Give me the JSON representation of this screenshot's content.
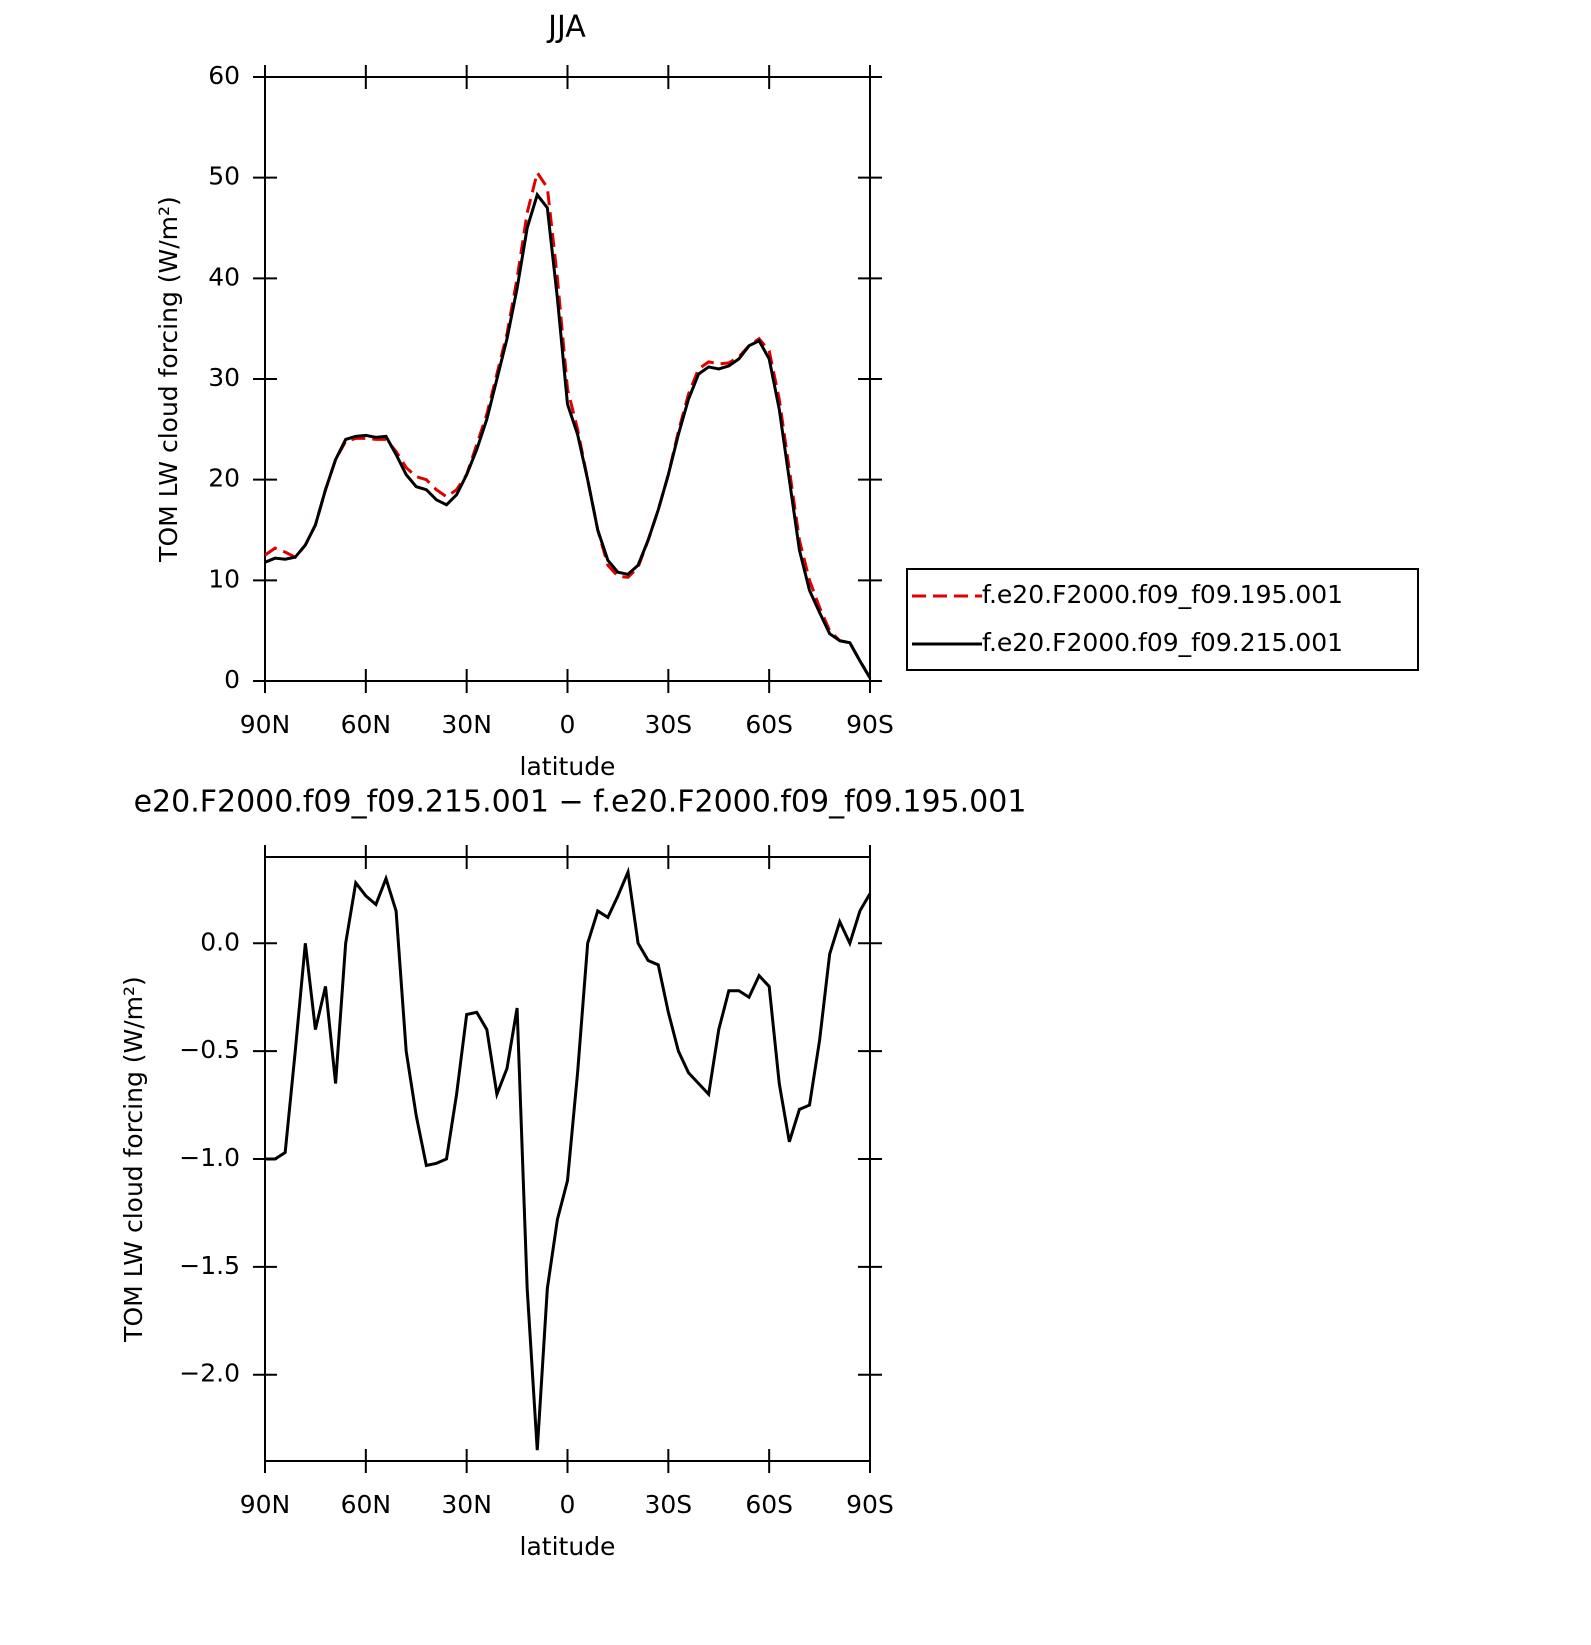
{
  "chart_data": [
    {
      "type": "line",
      "title": "JJA",
      "x_label": "latitude",
      "y_label": "TOM LW cloud forcing (W/m²)",
      "x": [
        90,
        87,
        84,
        81,
        78,
        75,
        72,
        69,
        66,
        63,
        60,
        57,
        54,
        51,
        48,
        45,
        42,
        39,
        36,
        33,
        30,
        27,
        24,
        21,
        18,
        15,
        12,
        9,
        6,
        3,
        0,
        -3,
        -6,
        -9,
        -12,
        -15,
        -18,
        -21,
        -24,
        -27,
        -30,
        -33,
        -36,
        -39,
        -42,
        -45,
        -48,
        -51,
        -54,
        -57,
        -60,
        -63,
        -66,
        -69,
        -72,
        -75,
        -78,
        -81,
        -84,
        -87,
        -90
      ],
      "series": [
        {
          "name": "f.e20.F2000.f09_f09.195.001",
          "color": "#e00000",
          "dashed": true,
          "values": [
            12.5,
            13.2,
            12.8,
            12.3,
            13.5,
            15.5,
            19,
            22,
            23.8,
            24.1,
            24.1,
            24,
            24,
            22.8,
            21.2,
            20.3,
            20,
            19,
            18.3,
            19,
            20.5,
            23.5,
            26.5,
            30.5,
            34.5,
            40,
            46.5,
            50.5,
            49,
            40,
            29,
            25,
            20,
            15,
            11.5,
            10.4,
            10.3,
            11.3,
            14,
            17,
            20.5,
            24.8,
            28.5,
            31,
            31.7,
            31.5,
            31.6,
            32.2,
            33.3,
            34,
            32.8,
            28,
            21,
            14,
            10,
            7.3,
            5,
            4,
            3.8,
            2,
            0.3
          ]
        },
        {
          "name": "f.e20.F2000.f09_f09.215.001",
          "color": "#000000",
          "dashed": false,
          "values": [
            11.8,
            12.2,
            12.1,
            12.3,
            13.5,
            15.5,
            19,
            22,
            24,
            24.3,
            24.4,
            24.2,
            24.3,
            22.5,
            20.5,
            19.3,
            19,
            18,
            17.5,
            18.5,
            20.5,
            23,
            26,
            30,
            34,
            39,
            45,
            48.3,
            47,
            38,
            27.5,
            24.5,
            20,
            15,
            12,
            10.8,
            10.6,
            11.5,
            14,
            17,
            20.5,
            24.5,
            28,
            30.5,
            31.2,
            31,
            31.3,
            32,
            33.3,
            33.8,
            32,
            27,
            20,
            13,
            9,
            6.8,
            4.7,
            4,
            3.8,
            2,
            0.3
          ]
        }
      ],
      "xlim": [
        90,
        -90
      ],
      "xticks": [
        {
          "value": 90,
          "label": "90N"
        },
        {
          "value": 60,
          "label": "60N"
        },
        {
          "value": 30,
          "label": "30N"
        },
        0,
        {
          "value": -30,
          "label": "30S"
        },
        {
          "value": -60,
          "label": "60S"
        },
        {
          "value": -90,
          "label": "90S"
        }
      ],
      "ylim": [
        0,
        60
      ],
      "yticks": [
        0,
        10,
        20,
        30,
        40,
        50,
        60
      ],
      "legend": "right"
    },
    {
      "type": "line",
      "title": "e20.F2000.f09_f09.215.001 − f.e20.F2000.f09_f09.195.001",
      "x_label": "latitude",
      "y_label": "TOM LW cloud forcing (W/m²)",
      "x": [
        90,
        87,
        84,
        81,
        78,
        75,
        72,
        69,
        66,
        63,
        60,
        57,
        54,
        51,
        48,
        45,
        42,
        39,
        36,
        33,
        30,
        27,
        24,
        21,
        18,
        15,
        12,
        9,
        6,
        3,
        0,
        -3,
        -6,
        -9,
        -12,
        -15,
        -18,
        -21,
        -24,
        -27,
        -30,
        -33,
        -36,
        -39,
        -42,
        -45,
        -48,
        -51,
        -54,
        -57,
        -60,
        -63,
        -66,
        -69,
        -72,
        -75,
        -78,
        -81,
        -84,
        -87,
        -90
      ],
      "series": [
        {
          "color": "#000000",
          "values": [
            -1.0,
            -1.0,
            -0.97,
            -0.5,
            0.0,
            -0.4,
            -0.2,
            -0.65,
            0.0,
            0.28,
            0.22,
            0.18,
            0.3,
            0.15,
            -0.5,
            -0.8,
            -1.03,
            -1.02,
            -1.0,
            -0.7,
            -0.33,
            -0.32,
            -0.4,
            -0.7,
            -0.58,
            -0.3,
            -1.6,
            -2.35,
            -1.6,
            -1.28,
            -1.1,
            -0.6,
            0.0,
            0.15,
            0.12,
            0.22,
            0.33,
            0.0,
            -0.08,
            -0.1,
            -0.32,
            -0.5,
            -0.6,
            -0.65,
            -0.7,
            -0.4,
            -0.22,
            -0.22,
            -0.25,
            -0.15,
            -0.2,
            -0.65,
            -0.92,
            -0.77,
            -0.75,
            -0.45,
            -0.05,
            0.1,
            0.0,
            0.15,
            0.23
          ]
        }
      ],
      "xlim": [
        90,
        -90
      ],
      "xticks": [
        {
          "value": 90,
          "label": "90N"
        },
        {
          "value": 60,
          "label": "60N"
        },
        {
          "value": 30,
          "label": "30N"
        },
        0,
        {
          "value": -30,
          "label": "30S"
        },
        {
          "value": -60,
          "label": "60S"
        },
        {
          "value": -90,
          "label": "90S"
        }
      ],
      "ylim": [
        -2.4,
        0.4
      ],
      "yticks": [
        {
          "value": 0,
          "label": "0.0"
        },
        {
          "value": -0.5,
          "label": "−0.5"
        },
        {
          "value": -1,
          "label": "−1.0"
        },
        {
          "value": -1.5,
          "label": "−1.5"
        },
        {
          "value": -2,
          "label": "−2.0"
        }
      ]
    }
  ]
}
